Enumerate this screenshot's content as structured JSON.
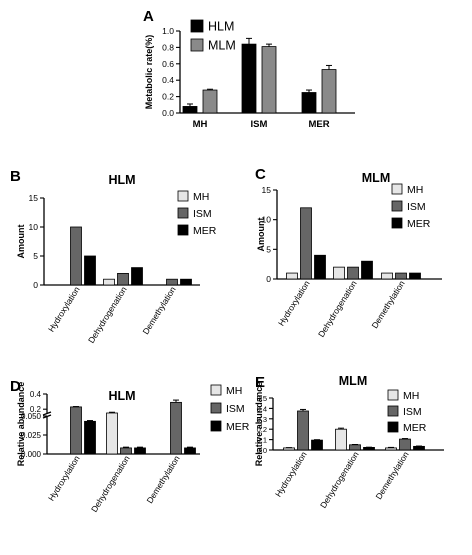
{
  "colors": {
    "MH": "#e6e6e6",
    "ISM": "#666666",
    "MER": "#000000",
    "HLM": "#000000",
    "MLM": "#8a8a8a",
    "axis": "#000000"
  },
  "chart_data": [
    {
      "id": "A",
      "panel": "A",
      "type": "bar",
      "ylabel": "Metabolic rate(%)",
      "categories": [
        "MH",
        "ISM",
        "MER"
      ],
      "ylim": [
        0,
        1.0
      ],
      "yticks": [
        "0.0",
        "0.2",
        "0.4",
        "0.6",
        "0.8",
        "1.0"
      ],
      "legend": "top-left",
      "error_bars": true,
      "series": [
        {
          "name": "HLM",
          "color_key": "HLM",
          "values": [
            0.08,
            0.84,
            0.25
          ],
          "errors": [
            0.03,
            0.07,
            0.03
          ]
        },
        {
          "name": "MLM",
          "color_key": "MLM",
          "values": [
            0.28,
            0.81,
            0.53
          ],
          "errors": [
            0.01,
            0.03,
            0.05
          ]
        }
      ]
    },
    {
      "id": "B",
      "panel": "B",
      "type": "bar",
      "title": "HLM",
      "ylabel": "Amount",
      "categories": [
        "Hydroxylation",
        "Dehydrogenation",
        "Demethylation"
      ],
      "ylim": [
        0,
        15
      ],
      "yticks": [
        "0",
        "5",
        "10",
        "15"
      ],
      "legend": "top-right",
      "series": [
        {
          "name": "MH",
          "color_key": "MH",
          "values": [
            0,
            1,
            0
          ]
        },
        {
          "name": "ISM",
          "color_key": "ISM",
          "values": [
            10,
            2,
            1
          ]
        },
        {
          "name": "MER",
          "color_key": "MER",
          "values": [
            5,
            3,
            1
          ]
        }
      ]
    },
    {
      "id": "C",
      "panel": "C",
      "type": "bar",
      "title": "MLM",
      "ylabel": "Amount",
      "categories": [
        "Hydroxylation",
        "Dehydrogenation",
        "Demethylation"
      ],
      "ylim": [
        0,
        15
      ],
      "yticks": [
        "0",
        "5",
        "10",
        "15"
      ],
      "legend": "top-right",
      "series": [
        {
          "name": "MH",
          "color_key": "MH",
          "values": [
            1,
            2,
            1
          ]
        },
        {
          "name": "ISM",
          "color_key": "ISM",
          "values": [
            12,
            2,
            1
          ]
        },
        {
          "name": "MER",
          "color_key": "MER",
          "values": [
            4,
            3,
            1
          ]
        }
      ]
    },
    {
      "id": "D",
      "panel": "D",
      "type": "bar",
      "title": "HLM",
      "ylabel": "Relative abundance",
      "categories": [
        "Hydroxylation",
        "Dehydrogenation",
        "Demethylation"
      ],
      "axis_break": true,
      "lower_segment": {
        "ylim": [
          0,
          0.05
        ],
        "yticks": [
          "0.000",
          "0.025",
          "0.050"
        ]
      },
      "upper_segment": {
        "ylim": [
          0.15,
          0.4
        ],
        "yticks": [
          "0.2",
          "0.4"
        ]
      },
      "legend": "top-right",
      "error_bars": true,
      "series": [
        {
          "name": "MH",
          "color_key": "MH",
          "values": [
            0,
            0.15,
            0
          ],
          "errors": [
            0,
            0.01,
            0
          ]
        },
        {
          "name": "ISM",
          "color_key": "ISM",
          "values": [
            0.23,
            0.008,
            0.29
          ],
          "errors": [
            0.005,
            0.001,
            0.03
          ]
        },
        {
          "name": "MER",
          "color_key": "MER",
          "values": [
            0.043,
            0.008,
            0.008
          ],
          "errors": [
            0.001,
            0.001,
            0.001
          ]
        }
      ]
    },
    {
      "id": "E",
      "panel": "E",
      "type": "bar",
      "title": "MLM",
      "ylabel": "Relative abundance",
      "categories": [
        "Hydroxylation",
        "Dehydrogenation",
        "Demethylation"
      ],
      "ylim": [
        0,
        0.5
      ],
      "yticks": [
        "0.0",
        "0.1",
        "0.2",
        "0.3",
        "0.4",
        "0.5"
      ],
      "legend": "top-right",
      "error_bars": true,
      "series": [
        {
          "name": "MH",
          "color_key": "MH",
          "values": [
            0.02,
            0.2,
            0.02
          ],
          "errors": [
            0.003,
            0.01,
            0.005
          ]
        },
        {
          "name": "ISM",
          "color_key": "ISM",
          "values": [
            0.375,
            0.05,
            0.105
          ],
          "errors": [
            0.015,
            0.003,
            0.005
          ]
        },
        {
          "name": "MER",
          "color_key": "MER",
          "values": [
            0.095,
            0.025,
            0.035
          ],
          "errors": [
            0.004,
            0.002,
            0.003
          ]
        }
      ]
    }
  ]
}
